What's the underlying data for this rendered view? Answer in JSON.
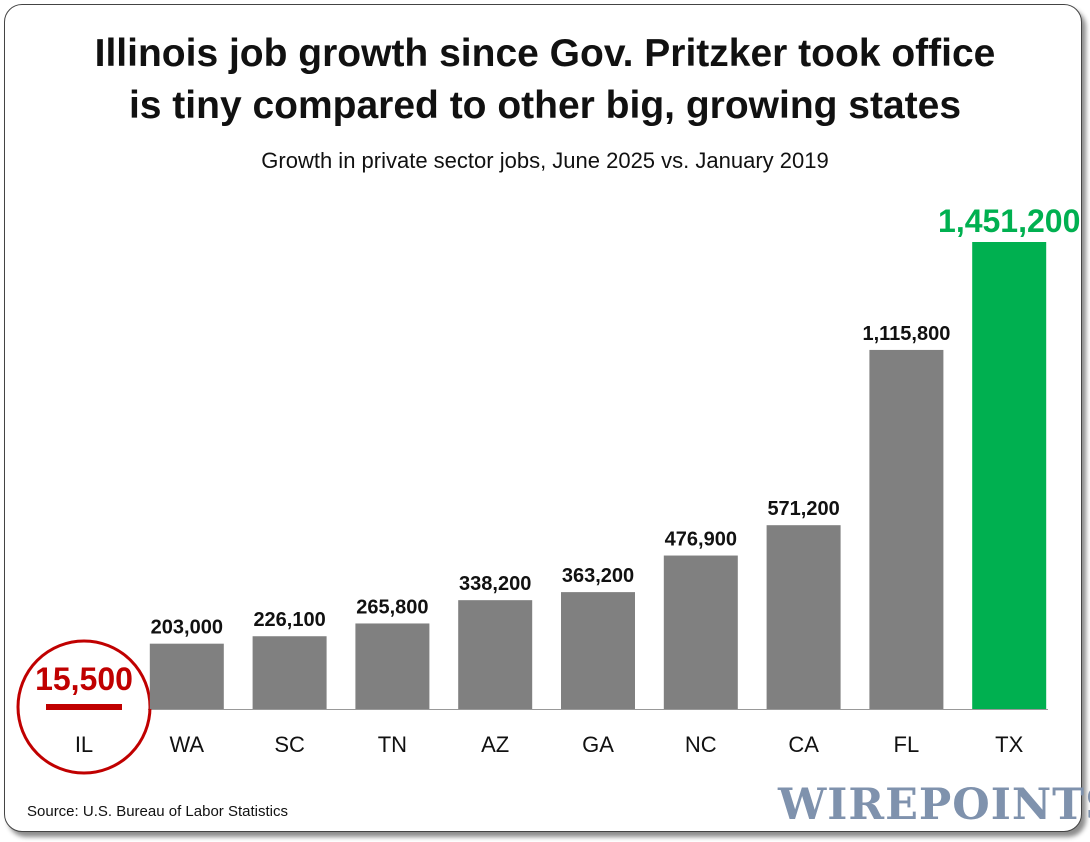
{
  "title_line1": "Illinois job growth since Gov. Pritzker took office",
  "title_line2": "is tiny compared to other big, growing states",
  "subtitle": "Growth in private sector jobs, June 2025 vs. January 2019",
  "source": "Source: U.S. Bureau of Labor Statistics",
  "logo": "WIREPOINTS",
  "colors": {
    "default_bar": "#808080",
    "highlight_low": "#c00000",
    "highlight_high": "#00b050",
    "label": "#111111"
  },
  "chart_data": {
    "type": "bar",
    "title": "Illinois job growth since Gov. Pritzker took office is tiny compared to other big, growing states",
    "subtitle": "Growth in private sector jobs, June 2025 vs. January 2019",
    "xlabel": "",
    "ylabel": "",
    "ylim": [
      0,
      1500000
    ],
    "grid": false,
    "categories": [
      "IL",
      "WA",
      "SC",
      "TN",
      "AZ",
      "GA",
      "NC",
      "CA",
      "FL",
      "TX"
    ],
    "values": [
      15500,
      203000,
      226100,
      265800,
      338200,
      363200,
      476900,
      571200,
      1115800,
      1451200
    ],
    "value_labels": [
      "15,500",
      "203,000",
      "226,100",
      "265,800",
      "338,200",
      "363,200",
      "476,900",
      "571,200",
      "1,115,800",
      "1,451,200"
    ],
    "highlight": {
      "IL": "low",
      "TX": "high"
    }
  }
}
